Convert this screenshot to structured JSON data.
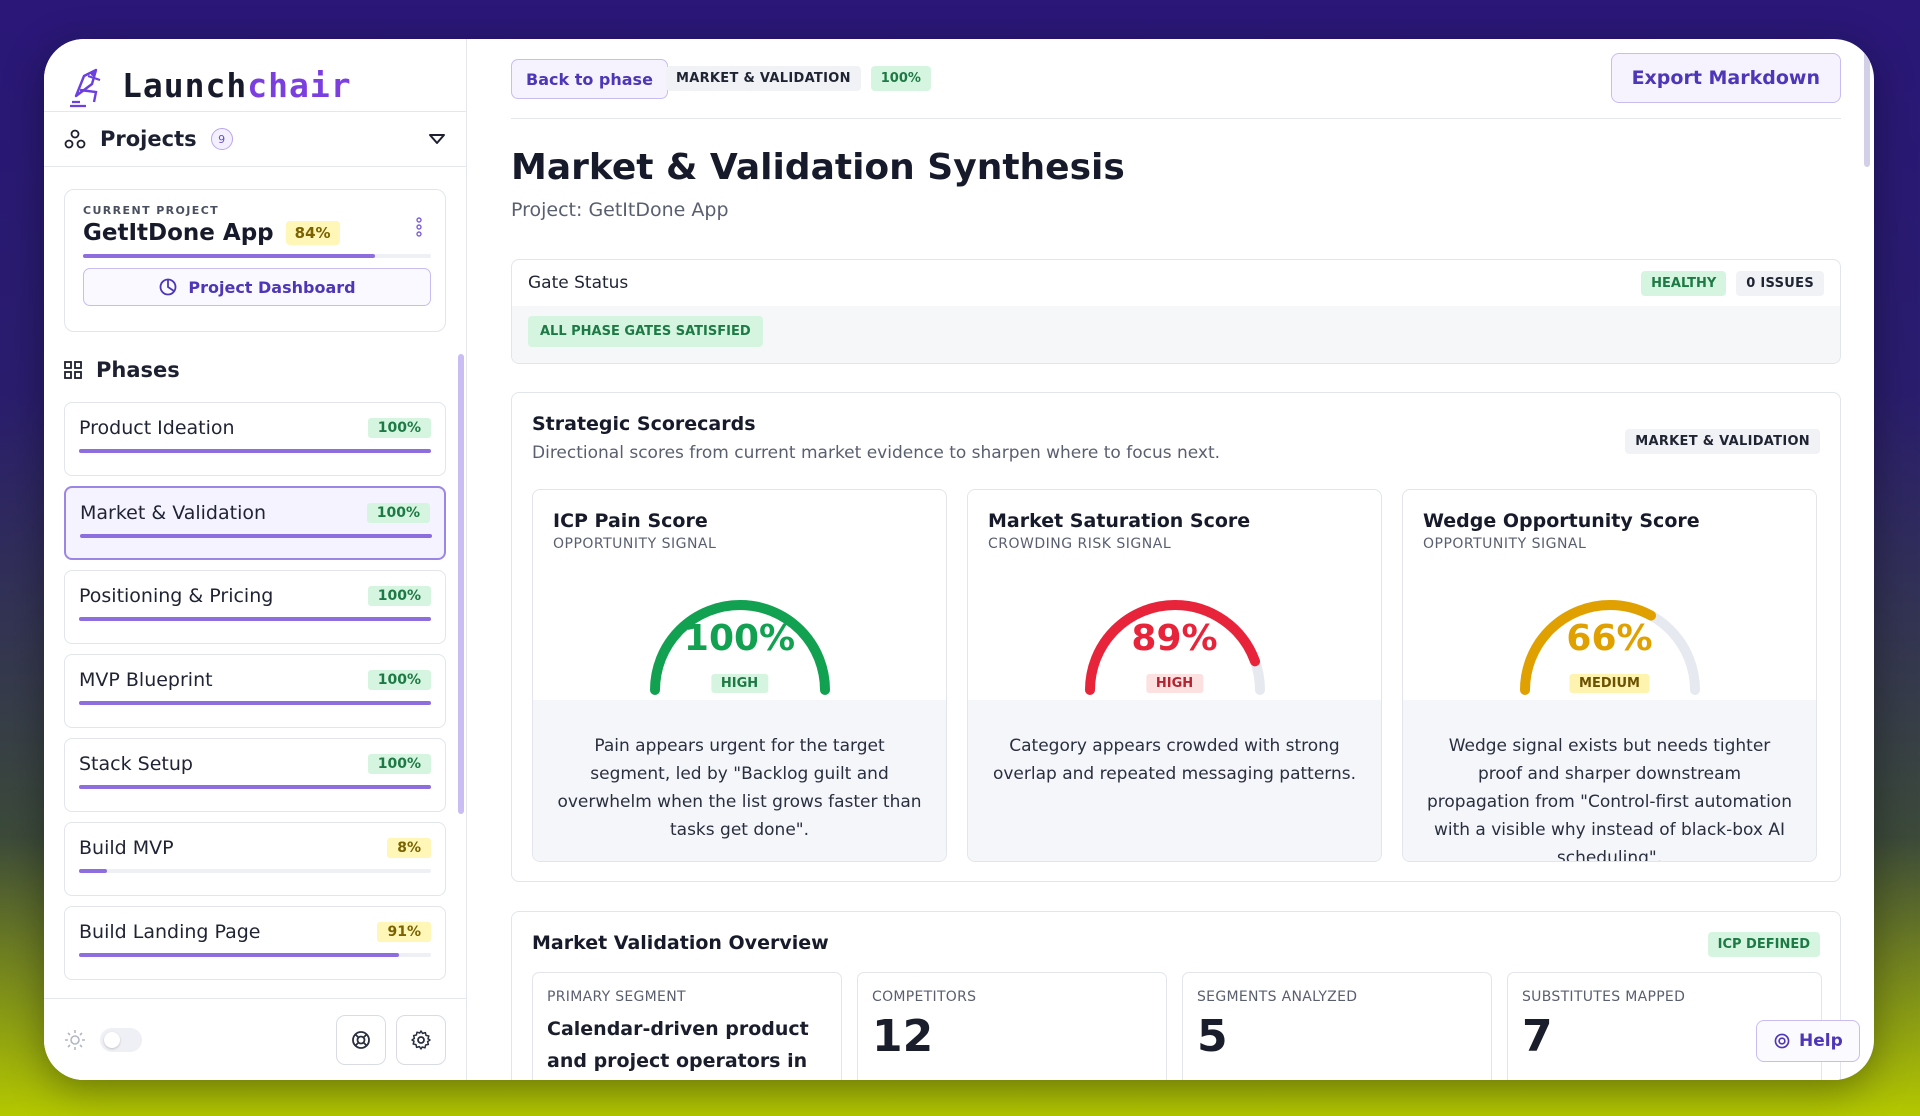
{
  "brand": {
    "part1": "Launch",
    "part2": "chair"
  },
  "projects": {
    "label": "Projects",
    "count": "9"
  },
  "current_project": {
    "label": "CURRENT PROJECT",
    "name": "GetItDone App",
    "progress_label": "84%",
    "progress": 0.84,
    "dashboard_button": "Project Dashboard"
  },
  "phases_label": "Phases",
  "phases": [
    {
      "name": "Product Ideation",
      "pct": "100%",
      "progress": 1.0,
      "color": "green"
    },
    {
      "name": "Market & Validation",
      "pct": "100%",
      "progress": 1.0,
      "color": "green",
      "active": true
    },
    {
      "name": "Positioning & Pricing",
      "pct": "100%",
      "progress": 1.0,
      "color": "green"
    },
    {
      "name": "MVP Blueprint",
      "pct": "100%",
      "progress": 1.0,
      "color": "green"
    },
    {
      "name": "Stack Setup",
      "pct": "100%",
      "progress": 1.0,
      "color": "green"
    },
    {
      "name": "Build MVP",
      "pct": "8%",
      "progress": 0.08,
      "color": "yellow"
    },
    {
      "name": "Build Landing Page",
      "pct": "91%",
      "progress": 0.91,
      "color": "yellow"
    }
  ],
  "topbar": {
    "back": "Back to phase",
    "phase_tag": "MARKET & VALIDATION",
    "pct_tag": "100%",
    "export": "Export Markdown"
  },
  "page": {
    "title": "Market & Validation Synthesis",
    "subtitle": "Project: GetItDone App"
  },
  "gate": {
    "title": "Gate Status",
    "healthy": "HEALTHY",
    "issues": "0 ISSUES",
    "satisfied": "ALL PHASE GATES SATISFIED"
  },
  "scorecards": {
    "title": "Strategic Scorecards",
    "desc": "Directional scores from current market evidence to sharpen where to focus next.",
    "tag": "MARKET & VALIDATION",
    "items": [
      {
        "name": "ICP Pain Score",
        "signal": "OPPORTUNITY SIGNAL",
        "value": "100%",
        "fraction": 1.0,
        "level": "HIGH",
        "color": "#12a150",
        "level_bg": "#d6f5e0",
        "level_fg": "#1e7a45",
        "text": "Pain appears urgent for the target segment, led by \"Backlog guilt and overwhelm when the list grows faster than tasks get done\"."
      },
      {
        "name": "Market Saturation Score",
        "signal": "CROWDING RISK SIGNAL",
        "value": "89%",
        "fraction": 0.89,
        "level": "HIGH",
        "color": "#e8243a",
        "level_bg": "#fde0e0",
        "level_fg": "#b4232f",
        "text": "Category appears crowded with strong overlap and repeated messaging patterns."
      },
      {
        "name": "Wedge Opportunity Score",
        "signal": "OPPORTUNITY SIGNAL",
        "value": "66%",
        "fraction": 0.66,
        "level": "MEDIUM",
        "color": "#e0a100",
        "level_bg": "#fff3b0",
        "level_fg": "#6b5200",
        "text": "Wedge signal exists but needs tighter proof and sharper downstream propagation from \"Control-first automation with a visible why instead of black-box AI scheduling\"."
      }
    ]
  },
  "overview": {
    "title": "Market Validation Overview",
    "tag": "ICP DEFINED",
    "metrics": [
      {
        "label": "PRIMARY SEGMENT",
        "text": "Calendar-driven product and project operators in"
      },
      {
        "label": "COMPETITORS",
        "value": "12"
      },
      {
        "label": "SEGMENTS ANALYZED",
        "value": "5"
      },
      {
        "label": "SUBSTITUTES MAPPED",
        "value": "7"
      }
    ]
  },
  "help": "Help"
}
